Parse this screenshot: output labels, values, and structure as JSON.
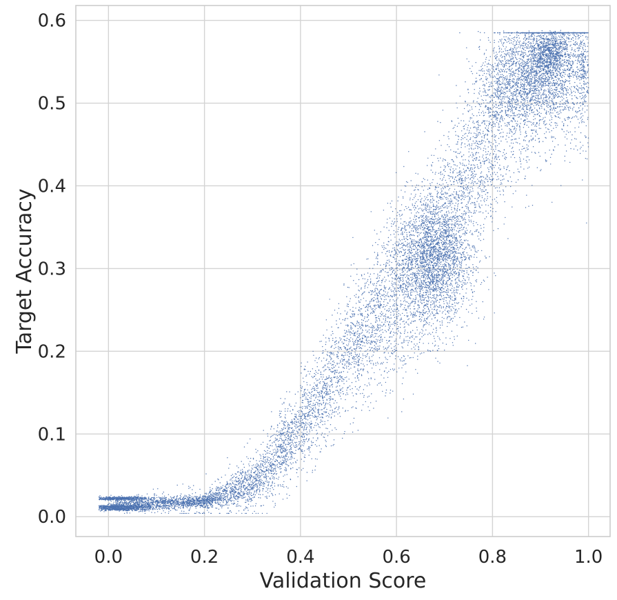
{
  "chart_data": {
    "type": "scatter",
    "title": "",
    "xlabel": "Validation Score",
    "ylabel": "Target Accuracy",
    "xlim": [
      -0.068,
      1.045
    ],
    "ylim": [
      -0.024,
      0.618
    ],
    "xticks": [
      0.0,
      0.2,
      0.4,
      0.6,
      0.8,
      1.0
    ],
    "xtick_labels": [
      "0.0",
      "0.2",
      "0.4",
      "0.6",
      "0.8",
      "1.0"
    ],
    "yticks": [
      0.0,
      0.1,
      0.2,
      0.3,
      0.4,
      0.5,
      0.6
    ],
    "ytick_labels": [
      "0.0",
      "0.1",
      "0.2",
      "0.3",
      "0.4",
      "0.5",
      "0.6"
    ],
    "grid": true,
    "legend": "none",
    "point_color": "#4c72b0",
    "point_count_estimate": "dense cloud (~40000 points)",
    "trend": [
      {
        "x": 0.0,
        "y": 0.015
      },
      {
        "x": 0.1,
        "y": 0.016
      },
      {
        "x": 0.2,
        "y": 0.018
      },
      {
        "x": 0.3,
        "y": 0.04
      },
      {
        "x": 0.35,
        "y": 0.07
      },
      {
        "x": 0.4,
        "y": 0.11
      },
      {
        "x": 0.45,
        "y": 0.15
      },
      {
        "x": 0.5,
        "y": 0.2
      },
      {
        "x": 0.55,
        "y": 0.235
      },
      {
        "x": 0.6,
        "y": 0.27
      },
      {
        "x": 0.65,
        "y": 0.3
      },
      {
        "x": 0.7,
        "y": 0.34
      },
      {
        "x": 0.75,
        "y": 0.41
      },
      {
        "x": 0.8,
        "y": 0.47
      },
      {
        "x": 0.85,
        "y": 0.52
      },
      {
        "x": 0.9,
        "y": 0.55
      },
      {
        "x": 0.95,
        "y": 0.56
      },
      {
        "x": 0.99,
        "y": 0.545
      }
    ],
    "clusters": [
      {
        "x": 0.02,
        "y": 0.022,
        "sx": 0.03,
        "sy": 0.001,
        "weight": 0.03
      },
      {
        "x": 0.02,
        "y": 0.012,
        "sx": 0.03,
        "sy": 0.001,
        "weight": 0.03
      },
      {
        "x": 0.02,
        "y": 0.009,
        "sx": 0.03,
        "sy": 0.001,
        "weight": 0.02
      },
      {
        "x": 0.68,
        "y": 0.31,
        "sx": 0.04,
        "sy": 0.04,
        "weight": 0.12
      },
      {
        "x": 0.88,
        "y": 0.53,
        "sx": 0.05,
        "sy": 0.03,
        "weight": 0.08
      },
      {
        "x": 0.92,
        "y": 0.56,
        "sx": 0.02,
        "sy": 0.015,
        "weight": 0.04
      },
      {
        "x": 0.99,
        "y": 0.545,
        "sx": 0.005,
        "sy": 0.012,
        "weight": 0.005
      }
    ]
  }
}
